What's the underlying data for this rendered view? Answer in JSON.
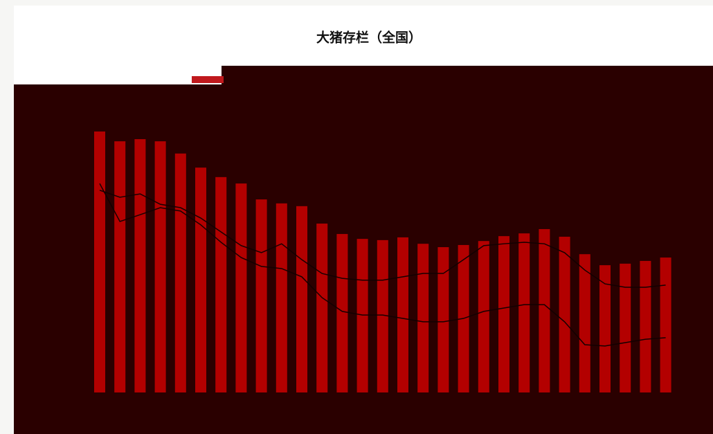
{
  "chart_data": {
    "type": "bar",
    "title": "大猪存栏（全国）",
    "categories": [
      null,
      null,
      null,
      null,
      null,
      null,
      null,
      null,
      null,
      null,
      null,
      null,
      null,
      null,
      null,
      null,
      null,
      null,
      null,
      null,
      null,
      null,
      null,
      null,
      null,
      null,
      null,
      null,
      null
    ],
    "ylim": [
      0,
      100
    ],
    "series": [
      {
        "type": "bar",
        "color": "#b30000",
        "values": [
          85.3,
          82.1,
          82.8,
          82.1,
          78.1,
          73.5,
          70.4,
          68.3,
          63.1,
          61.8,
          60.9,
          55.2,
          51.8,
          50.2,
          49.8,
          50.7,
          48.6,
          47.5,
          48.2,
          49.5,
          51.1,
          52.0,
          53.4,
          50.9,
          45.2,
          41.6,
          42.1,
          43.0,
          44.1
        ]
      },
      {
        "type": "line",
        "color": "#140000",
        "values": [
          66.1,
          63.8,
          64.9,
          61.5,
          60.4,
          57.0,
          52.5,
          48.0,
          45.7,
          48.6,
          43.4,
          38.9,
          37.3,
          36.7,
          36.7,
          37.8,
          38.9,
          38.9,
          43.4,
          48.0,
          48.6,
          49.1,
          48.6,
          45.7,
          40.0,
          35.5,
          34.4,
          34.4,
          35.1
        ]
      },
      {
        "type": "line",
        "color": "#140000",
        "values": [
          68.3,
          55.9,
          58.1,
          60.4,
          59.3,
          54.8,
          49.1,
          44.1,
          41.2,
          40.5,
          37.8,
          31.0,
          26.5,
          25.3,
          25.3,
          24.2,
          23.1,
          23.1,
          24.2,
          26.5,
          27.6,
          28.7,
          28.7,
          23.1,
          15.6,
          15.2,
          16.3,
          17.4,
          17.9
        ]
      }
    ]
  }
}
